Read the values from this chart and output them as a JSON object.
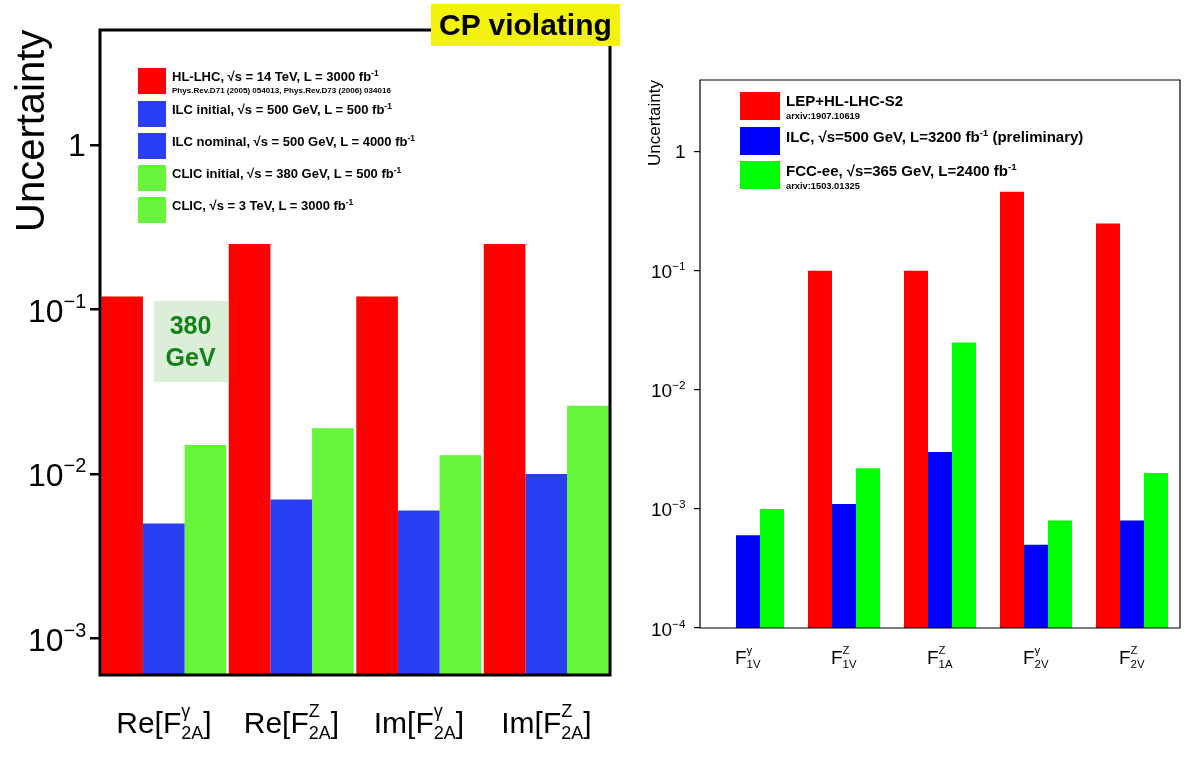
{
  "chart_data": [
    {
      "type": "bar",
      "title": "CP violating",
      "ylabel": "Uncertainty",
      "log": "y",
      "legend": "top left",
      "categories": [
        "Re[F$^{γ}$$_{2A}$]",
        "Re[F$^{Z}$$_{2A}$]",
        "Im[F$^{γ}$$_{2A}$]",
        "Im[F$^{Z}$$_{2A}$]"
      ],
      "ylim": [
        0.0006,
        5
      ],
      "yticks": [
        {
          "value": 0.001,
          "label": "10$^{−3}$"
        },
        {
          "value": 0.01,
          "label": "10$^{−2}$"
        },
        {
          "value": 0.1,
          "label": "10$^{−1}$"
        },
        1
      ],
      "annotations": [
        "380 GeV"
      ],
      "series": [
        {
          "name": "HL-LHC,  √s = 14 TeV, L = 3000 fb$^{-1}$\nPhys.Rev.D71 (2005) 054013,  Phys.Rev.D73 (2006) 034016",
          "color": "#ff0000",
          "values": [
            0.12,
            0.25,
            0.12,
            0.25
          ]
        },
        {
          "name": "ILC initial,  √s = 500 GeV, L = 500 fb$^{-1}$",
          "color": "#2a3ff5",
          "values": [
            0.005,
            0.007,
            0.006,
            0.01
          ]
        },
        {
          "name": "ILC nominal,  √s = 500 GeV, L = 4000 fb$^{-1}$",
          "color": "#2a3ff5",
          "values": [
            null,
            null,
            null,
            null
          ]
        },
        {
          "name": "CLIC initial,  √s = 380 GeV, L = 500 fb$^{-1}$",
          "color": "#66f53a",
          "values": [
            0.015,
            0.019,
            0.013,
            0.026
          ]
        },
        {
          "name": "CLIC,  √s = 3 TeV, L = 3000 fb$^{-1}$",
          "color": "#66f53a",
          "values": [
            null,
            null,
            null,
            null
          ]
        }
      ]
    },
    {
      "type": "bar",
      "ylabel": "Uncertainty",
      "log": "y",
      "legend": "top left",
      "categories": [
        "F$^{γ}$$_{1V}$",
        "F$^{Z}$$_{1V}$",
        "F$^{Z}$$_{1A}$",
        "F$^{γ}$$_{2V}$",
        "F$^{Z}$$_{2V}$"
      ],
      "ylim": [
        0.0001,
        4
      ],
      "yticks": [
        {
          "value": 0.0001,
          "label": "10$^{−4}$"
        },
        {
          "value": 0.001,
          "label": "10$^{−3}$"
        },
        {
          "value": 0.01,
          "label": "10$^{−2}$"
        },
        {
          "value": 0.1,
          "label": "10$^{−1}$"
        },
        1
      ],
      "series": [
        {
          "name": "LEP+HL-LHC-S2\narxiv:1907.10619",
          "color": "#ff0000",
          "values": [
            null,
            0.1,
            0.1,
            0.46,
            0.25
          ]
        },
        {
          "name": "ILC,  √s=500 GeV, L=3200 fb$^{-1}$ (preliminary)",
          "color": "#0000ff",
          "values": [
            0.0006,
            0.0011,
            0.003,
            0.0005,
            0.0008
          ]
        },
        {
          "name": "FCC-ee,  √s=365 GeV, L=2400 fb$^{-1}$\narxiv:1503.01325",
          "color": "#00ff00",
          "values": [
            0.001,
            0.0022,
            0.025,
            0.0008,
            0.002
          ]
        }
      ]
    }
  ]
}
